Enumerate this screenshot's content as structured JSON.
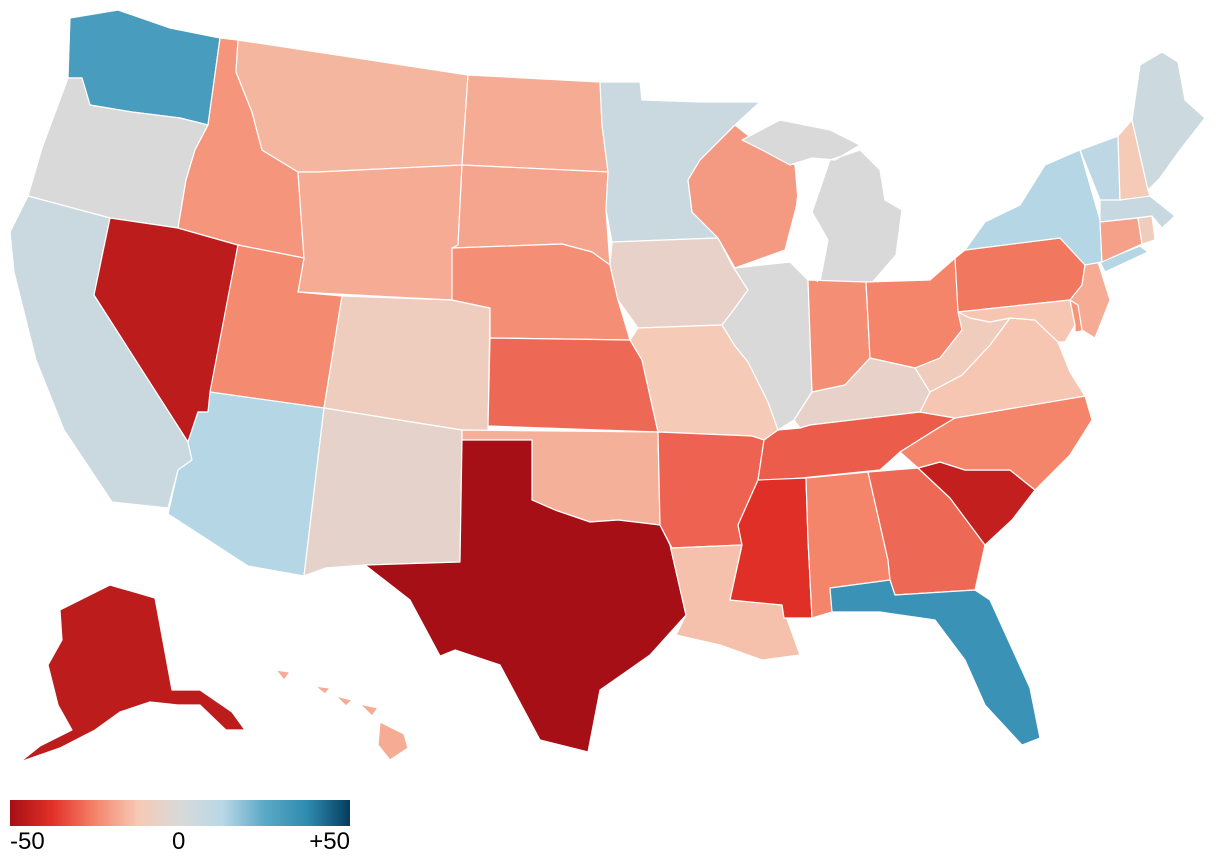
{
  "legend": {
    "min_label": "-50",
    "mid_label": "0",
    "max_label": "+50",
    "min_value": -50,
    "max_value": 50,
    "color_stops": [
      "#a50f15",
      "#e23028",
      "#f4846a",
      "#f6c9b5",
      "#d9d9d9",
      "#b9d8e6",
      "#5aa8c6",
      "#2e8bb0",
      "#053c5e"
    ]
  },
  "states": [
    {
      "code": "WA",
      "value": 30
    },
    {
      "code": "OR",
      "value": 0
    },
    {
      "code": "CA",
      "value": 6
    },
    {
      "code": "NV",
      "value": -45
    },
    {
      "code": "ID",
      "value": -22
    },
    {
      "code": "MT",
      "value": -16
    },
    {
      "code": "WY",
      "value": -18
    },
    {
      "code": "UT",
      "value": -24
    },
    {
      "code": "AZ",
      "value": 13
    },
    {
      "code": "CO",
      "value": -9
    },
    {
      "code": "NM",
      "value": -5
    },
    {
      "code": "ND",
      "value": -18
    },
    {
      "code": "SD",
      "value": -19
    },
    {
      "code": "NE",
      "value": -23
    },
    {
      "code": "KS",
      "value": -29
    },
    {
      "code": "OK",
      "value": -17
    },
    {
      "code": "TX",
      "value": -55
    },
    {
      "code": "MN",
      "value": 6
    },
    {
      "code": "IA",
      "value": -6
    },
    {
      "code": "MO",
      "value": -12
    },
    {
      "code": "AR",
      "value": -30
    },
    {
      "code": "LA",
      "value": -14
    },
    {
      "code": "WI",
      "value": -21
    },
    {
      "code": "IL",
      "value": 0
    },
    {
      "code": "MI",
      "value": 0
    },
    {
      "code": "IN",
      "value": -23
    },
    {
      "code": "OH",
      "value": -25
    },
    {
      "code": "KY",
      "value": -6
    },
    {
      "code": "TN",
      "value": -31
    },
    {
      "code": "MS",
      "value": -38
    },
    {
      "code": "AL",
      "value": -25
    },
    {
      "code": "GA",
      "value": -29
    },
    {
      "code": "FL",
      "value": 34
    },
    {
      "code": "SC",
      "value": -44
    },
    {
      "code": "NC",
      "value": -25
    },
    {
      "code": "VA",
      "value": -13
    },
    {
      "code": "WV",
      "value": -10
    },
    {
      "code": "PA",
      "value": -27
    },
    {
      "code": "NY",
      "value": 13
    },
    {
      "code": "VT",
      "value": 11
    },
    {
      "code": "NH",
      "value": -12
    },
    {
      "code": "ME",
      "value": 5
    },
    {
      "code": "MA",
      "value": 7
    },
    {
      "code": "CT",
      "value": -20
    },
    {
      "code": "RI",
      "value": -10
    },
    {
      "code": "NJ",
      "value": -18
    },
    {
      "code": "DE",
      "value": -22
    },
    {
      "code": "MD",
      "value": -13
    },
    {
      "code": "AK",
      "value": -45
    },
    {
      "code": "HI",
      "value": -18
    }
  ]
}
